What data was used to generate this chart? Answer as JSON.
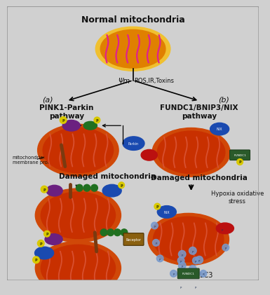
{
  "bg_color": "#d0d0d0",
  "title": "Normal mitochondria",
  "psi_label": "Ψm",
  "ros_label": "ROS,IR,Toxins",
  "label_a": "(a)",
  "label_b": "(b)",
  "pathway_a_title": "PINK1-Parkin\npathway",
  "pathway_b_title": "FUNDC1/BNIP3/NIX\npathway",
  "mito_label_membrane": "mitochondrial\nmembrane protein",
  "damaged_label_a": "Damaged mitochondria",
  "damaged_label_b": "Damaged mitochondria",
  "hypoxia_label": "Hypoxia oxidative\nstress",
  "lc3_label": "LC3",
  "colors": {
    "mito_body": "#c83000",
    "mito_outer": "#d04000",
    "mito_cristae": "#e05030",
    "normal_outer": "#f0c030",
    "normal_body": "#e08000",
    "normal_cristae": "#e0208f",
    "parkin_purple": "#6b2080",
    "pink1_green": "#207020",
    "ubiquitin_yellow": "#d8c000",
    "p_yellow": "#d8c800",
    "receptor_blue": "#1a4ab0",
    "fundc1_green": "#2a5a2a",
    "red_receptor": "#bb1010",
    "lc3_blue": "#5070bb",
    "brown_stick": "#7a3a10",
    "receptor_brown": "#8a6010",
    "text_dark": "#111111"
  }
}
